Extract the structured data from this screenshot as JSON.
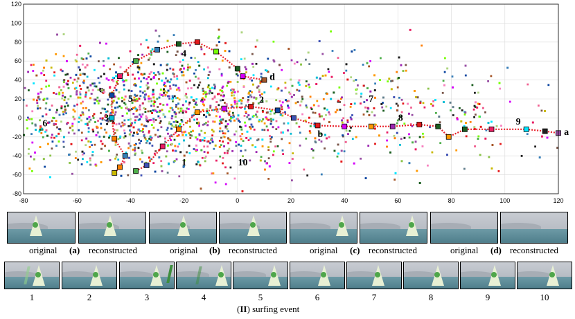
{
  "chart_data": {
    "type": "scatter",
    "xlim": [
      -80,
      120
    ],
    "ylim": [
      -80,
      120
    ],
    "x_ticks": [
      "-80",
      "-60",
      "-40",
      "-20",
      "0",
      "20",
      "40",
      "60",
      "80",
      "100",
      "120"
    ],
    "y_ticks": [
      "120",
      "100",
      "80",
      "60",
      "40",
      "20",
      "0",
      "-20",
      "-40",
      "-60",
      "-80"
    ],
    "grid": true,
    "series": [
      {
        "line_color": "#e8202a",
        "points": [
          [
            -38,
            -56
          ],
          [
            -34,
            -50
          ],
          [
            -28,
            -30
          ],
          [
            -22,
            -12
          ],
          [
            -15,
            6
          ],
          [
            -5,
            10
          ],
          [
            5,
            12
          ],
          [
            15,
            8
          ],
          [
            21,
            0
          ],
          [
            30,
            -8
          ],
          [
            40,
            -9
          ],
          [
            50,
            -9
          ],
          [
            58,
            -9
          ],
          [
            68,
            -7
          ],
          [
            75,
            -9
          ],
          [
            79,
            -20
          ],
          [
            85,
            -12
          ],
          [
            95,
            -12
          ],
          [
            108,
            -12
          ],
          [
            115,
            -14
          ],
          [
            120,
            -16
          ]
        ]
      },
      {
        "line_color": "#e8202a",
        "points": [
          [
            -46,
            -58
          ],
          [
            -44,
            -52
          ],
          [
            -42,
            -40
          ],
          [
            -46,
            -22
          ],
          [
            -47,
            0
          ],
          [
            -47,
            24
          ],
          [
            -44,
            44
          ],
          [
            -38,
            60
          ],
          [
            -30,
            72
          ],
          [
            -22,
            78
          ],
          [
            -15,
            80
          ],
          [
            -8,
            70
          ],
          [
            0,
            52
          ],
          [
            2,
            44
          ],
          [
            10,
            40
          ]
        ]
      }
    ],
    "annotations": [
      {
        "text": "a",
        "x": 123,
        "y": -18
      },
      {
        "text": "b",
        "x": 31,
        "y": -20
      },
      {
        "text": "c",
        "x": -51,
        "y": 27
      },
      {
        "text": "d",
        "x": 13,
        "y": 40
      },
      {
        "text": "1",
        "x": -20,
        "y": -50
      },
      {
        "text": "2",
        "x": 9,
        "y": 16
      },
      {
        "text": "3",
        "x": -49,
        "y": -3
      },
      {
        "text": "4",
        "x": -20,
        "y": 65
      },
      {
        "text": "5",
        "x": -40,
        "y": 17
      },
      {
        "text": "6",
        "x": -72,
        "y": -9
      },
      {
        "text": "7",
        "x": 50,
        "y": 17
      },
      {
        "text": "8",
        "x": 61,
        "y": -3
      },
      {
        "text": "9",
        "x": 105,
        "y": -7
      },
      {
        "text": "10",
        "x": 2,
        "y": -50
      }
    ]
  },
  "recon_captions": [
    {
      "original": "original",
      "letter": "(a)",
      "reconstructed": "reconstructed"
    },
    {
      "original": "original",
      "letter": "(b)",
      "reconstructed": "reconstructed"
    },
    {
      "original": "original",
      "letter": "(c)",
      "reconstructed": "reconstructed"
    },
    {
      "original": "original",
      "letter": "(d)",
      "reconstructed": "reconstructed"
    }
  ],
  "frame_numbers": [
    "1",
    "2",
    "3",
    "4",
    "5",
    "6",
    "7",
    "8",
    "9",
    "10"
  ],
  "event_caption": {
    "part_label": "II",
    "text": "surfing event"
  },
  "colors": {
    "trajectory": "#e8202a",
    "grid": "#d9d9d9",
    "axes": "#000000"
  }
}
